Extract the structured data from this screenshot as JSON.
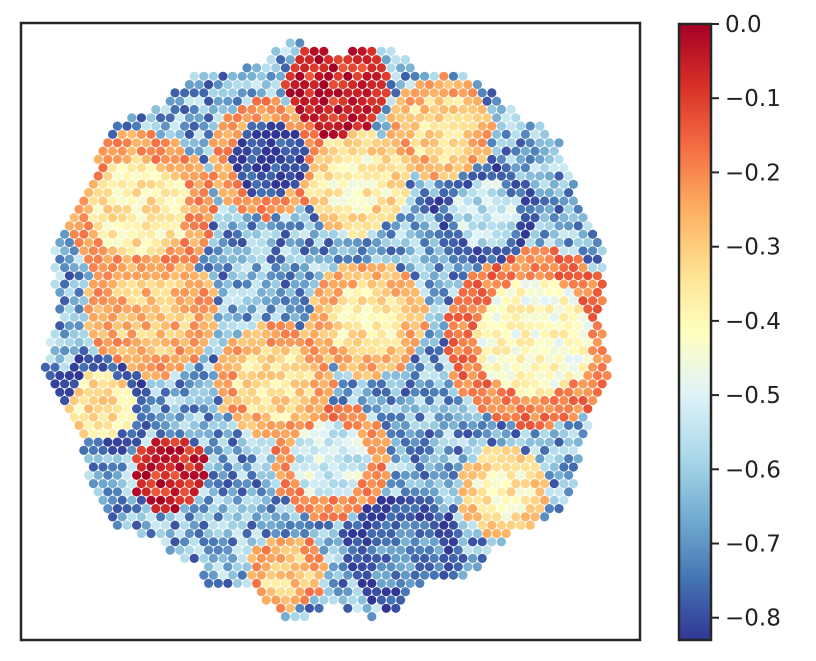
{
  "chart_data": {
    "type": "heatmap",
    "subtype": "hexagonal spatial spot map (circular tissue capture area)",
    "title": "",
    "xlabel": "",
    "ylabel": "",
    "x_ticks": [],
    "y_ticks": [],
    "grid": false,
    "colormap": "RdYlBu_r",
    "colorbar": {
      "range": [
        -0.83,
        0.0
      ],
      "ticks": [
        0.0,
        -0.1,
        -0.2,
        -0.3,
        -0.4,
        -0.5,
        -0.6,
        -0.7,
        -0.8
      ],
      "tick_labels": [
        "0.0",
        "−0.1",
        "−0.2",
        "−0.3",
        "−0.4",
        "−0.5",
        "−0.6",
        "−0.7",
        "−0.8"
      ],
      "placement": "right"
    },
    "spot_field": {
      "extent": "circle",
      "background_value": -0.66,
      "regions": [
        {
          "label": "top-center cluster",
          "cx": 0.51,
          "cy": 0.1,
          "r": 0.075,
          "ring_value": -0.05,
          "core_value": -0.06
        },
        {
          "label": "upper-left-center ring",
          "cx": 0.4,
          "cy": 0.22,
          "r": 0.085,
          "ring_value": -0.22,
          "core_value": -0.82
        },
        {
          "label": "upper-center ring",
          "cx": 0.54,
          "cy": 0.26,
          "r": 0.075,
          "ring_value": -0.32,
          "core_value": -0.38
        },
        {
          "label": "top-right ring",
          "cx": 0.68,
          "cy": 0.17,
          "r": 0.075,
          "ring_value": -0.25,
          "core_value": -0.32
        },
        {
          "label": "upper-right blue ring",
          "cx": 0.75,
          "cy": 0.31,
          "r": 0.075,
          "ring_value": -0.78,
          "core_value": -0.55
        },
        {
          "label": "right large ring",
          "cx": 0.83,
          "cy": 0.51,
          "r": 0.13,
          "ring_value": -0.18,
          "core_value": -0.42
        },
        {
          "label": "left ring",
          "cx": 0.19,
          "cy": 0.3,
          "r": 0.11,
          "ring_value": -0.22,
          "core_value": -0.36
        },
        {
          "label": "mid-left ring",
          "cx": 0.21,
          "cy": 0.47,
          "r": 0.095,
          "ring_value": -0.24,
          "core_value": -0.28
        },
        {
          "label": "far-left blue ring",
          "cx": 0.13,
          "cy": 0.62,
          "r": 0.075,
          "ring_value": -0.78,
          "core_value": -0.35
        },
        {
          "label": "lower-left red spot",
          "cx": 0.24,
          "cy": 0.73,
          "r": 0.055,
          "ring_value": -0.06,
          "core_value": -0.06
        },
        {
          "label": "center ring",
          "cx": 0.56,
          "cy": 0.48,
          "r": 0.085,
          "ring_value": -0.26,
          "core_value": -0.36
        },
        {
          "label": "center-left ring",
          "cx": 0.41,
          "cy": 0.58,
          "r": 0.085,
          "ring_value": -0.24,
          "core_value": -0.34
        },
        {
          "label": "lower-center ring",
          "cx": 0.5,
          "cy": 0.71,
          "r": 0.085,
          "ring_value": -0.2,
          "core_value": -0.52
        },
        {
          "label": "bottom-center blue ring",
          "cx": 0.62,
          "cy": 0.86,
          "r": 0.085,
          "ring_value": -0.8,
          "core_value": -0.72
        },
        {
          "label": "bottom-left spot",
          "cx": 0.43,
          "cy": 0.89,
          "r": 0.055,
          "ring_value": -0.22,
          "core_value": -0.3
        },
        {
          "label": "lower-right patch",
          "cx": 0.78,
          "cy": 0.76,
          "r": 0.065,
          "ring_value": -0.3,
          "core_value": -0.38
        }
      ]
    }
  }
}
